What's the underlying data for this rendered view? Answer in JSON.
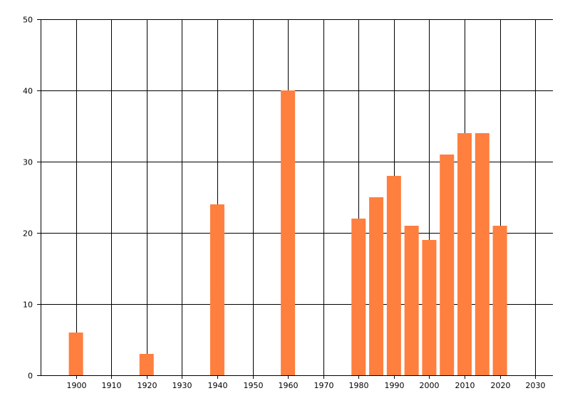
{
  "chart_data": {
    "type": "bar",
    "title": "",
    "xlabel": "",
    "ylabel": "",
    "x": [
      1900,
      1920,
      1940,
      1960,
      1980,
      1985,
      1990,
      1995,
      2000,
      2005,
      2010,
      2015,
      2020
    ],
    "values": [
      6,
      3,
      24,
      40,
      22,
      25,
      28,
      21,
      19,
      31,
      34,
      34,
      21
    ],
    "xlim": [
      1890,
      2035
    ],
    "ylim": [
      0,
      50
    ],
    "xticks": [
      1900,
      1910,
      1920,
      1930,
      1940,
      1950,
      1960,
      1970,
      1980,
      1990,
      2000,
      2010,
      2020,
      2030
    ],
    "yticks": [
      0,
      10,
      20,
      30,
      40,
      50
    ],
    "bar_color": "#ff7f3f",
    "grid": true
  }
}
